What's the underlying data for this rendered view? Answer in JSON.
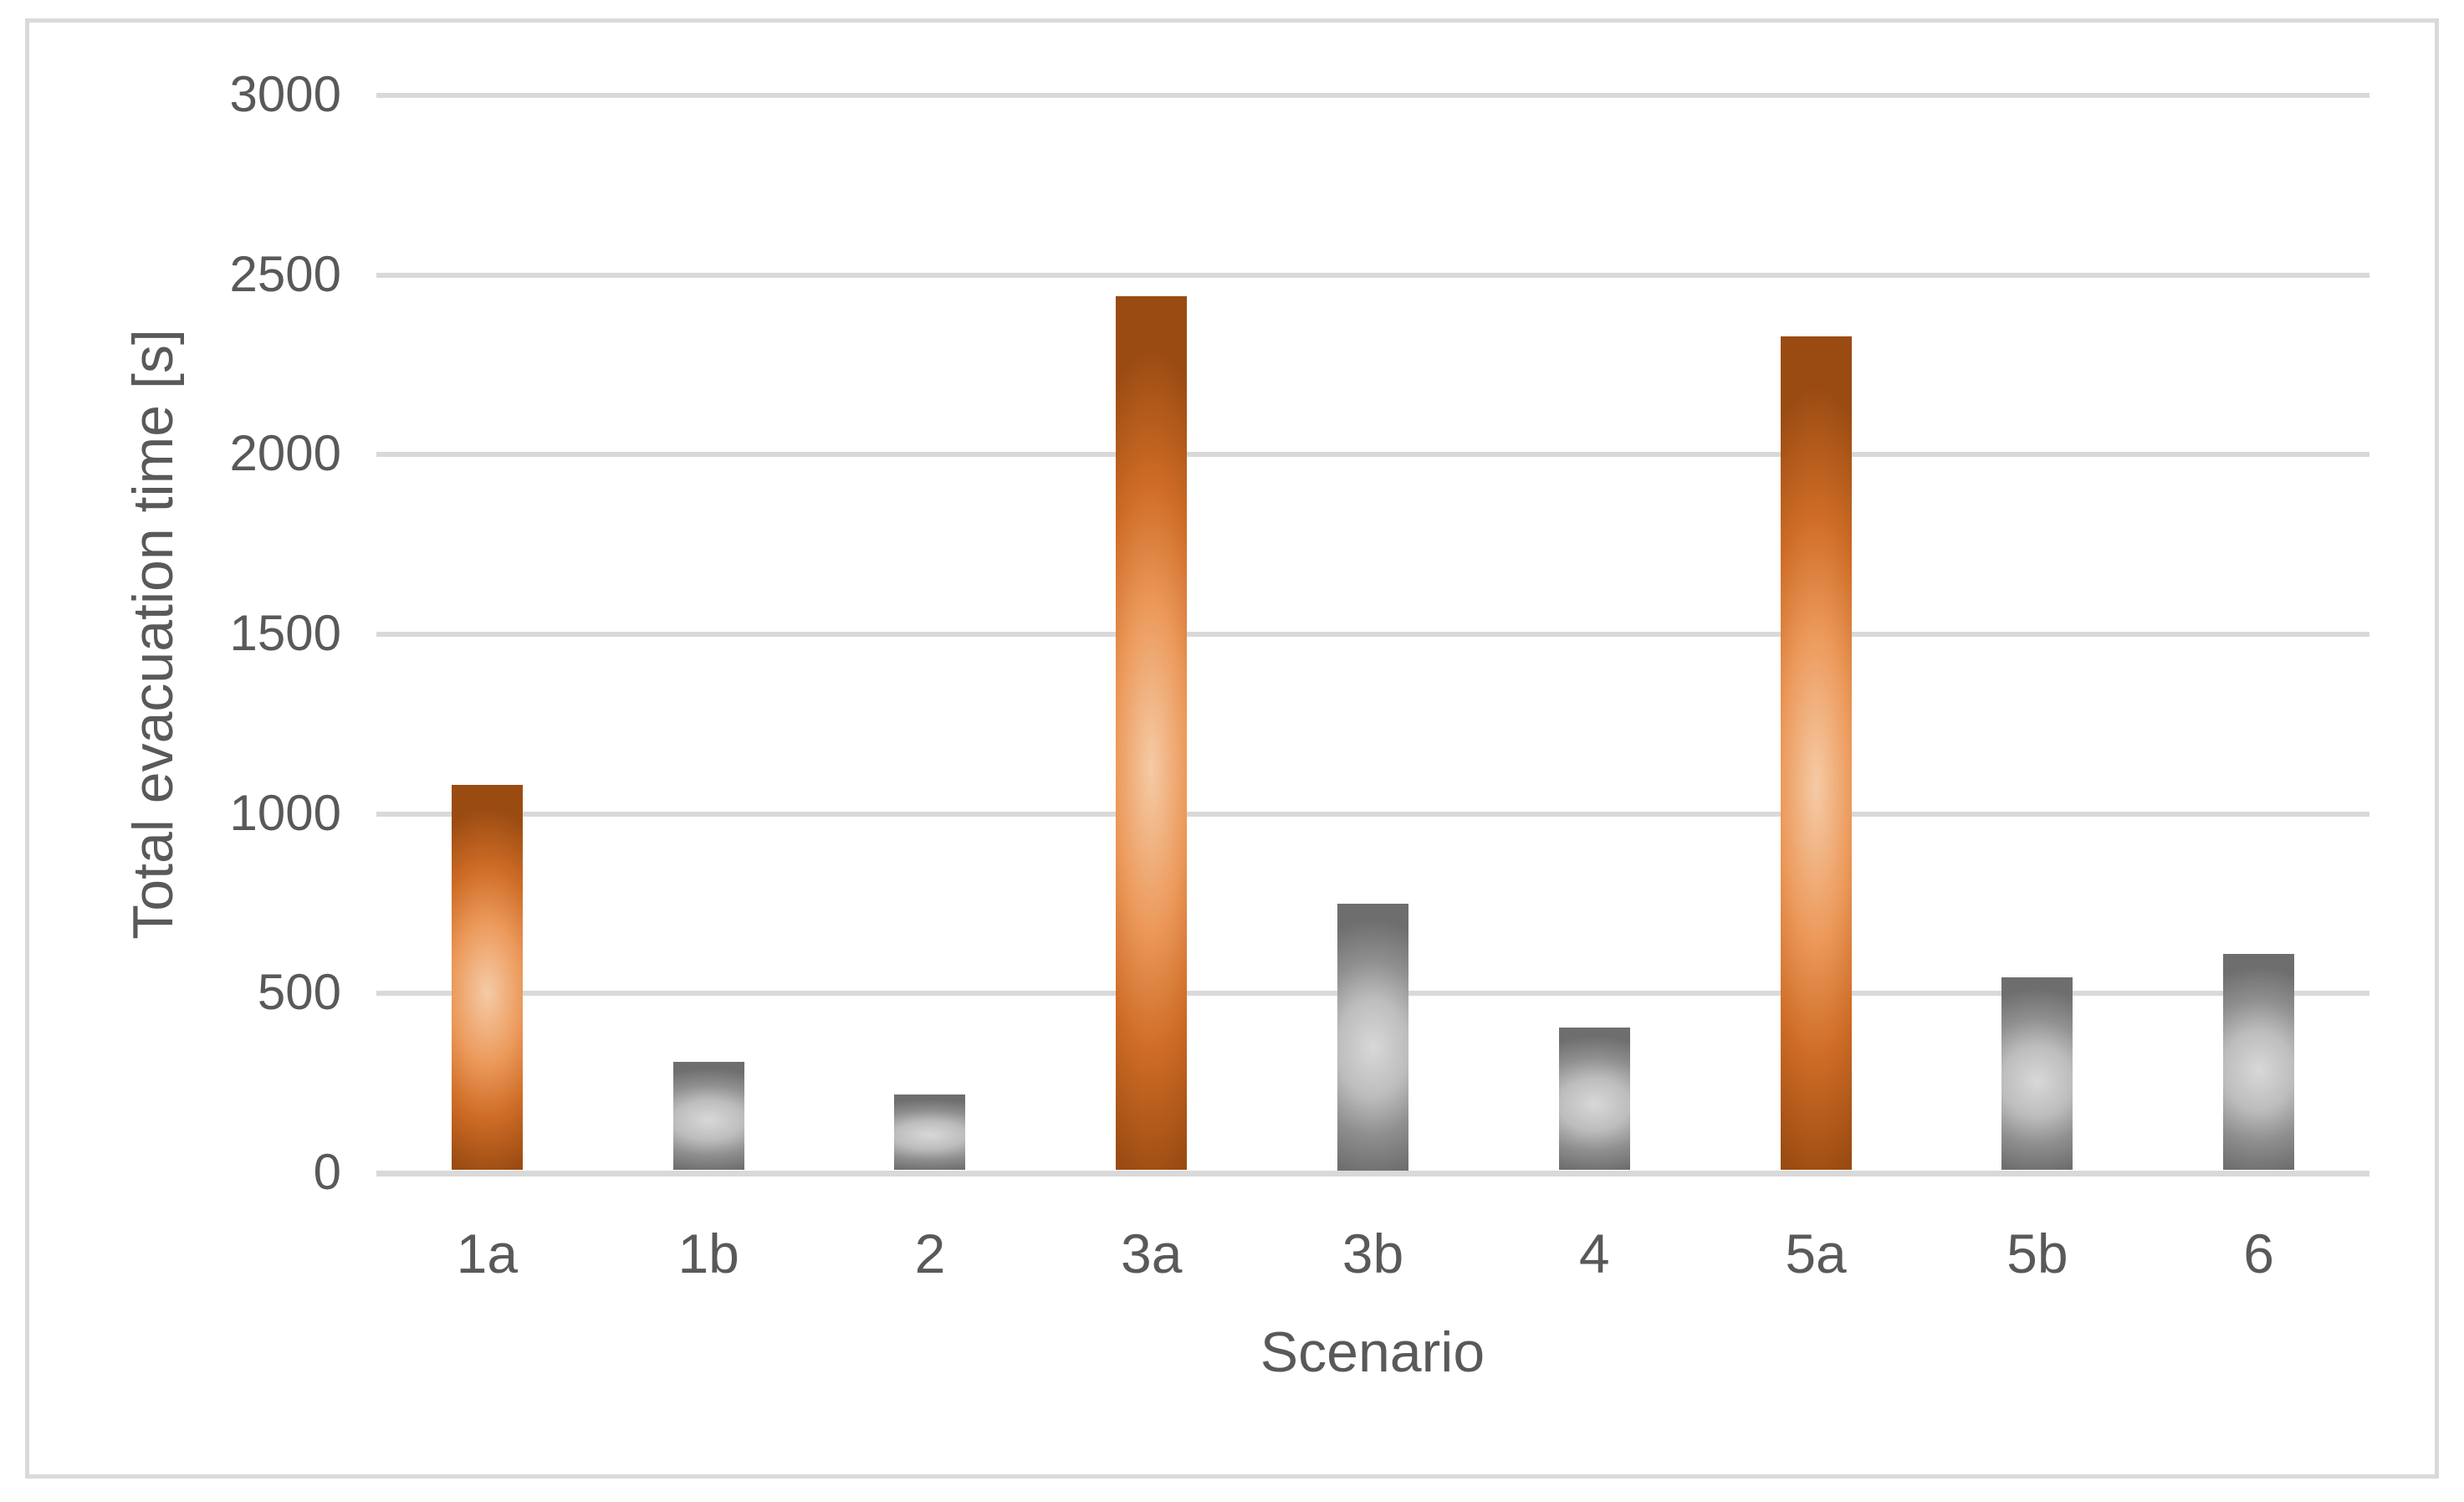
{
  "chart_data": {
    "type": "bar",
    "title": "",
    "categories": [
      "1a",
      "1b",
      "2",
      "3a",
      "3b",
      "4",
      "5a",
      "5b",
      "6"
    ],
    "values": [
      1080,
      310,
      220,
      2440,
      750,
      405,
      2330,
      545,
      610
    ],
    "bar_styles": [
      "accent",
      "neutral",
      "neutral",
      "accent",
      "neutral",
      "neutral",
      "accent",
      "neutral",
      "neutral"
    ],
    "xlabel": "Scenario",
    "ylabel": "Total evacuation time [s]",
    "ylim": [
      0,
      3000
    ],
    "ytick_step": 500,
    "yticks": [
      0,
      500,
      1000,
      1500,
      2000,
      2500,
      3000
    ],
    "grid": true,
    "legend": "none",
    "colors": {
      "accent_dark": "#9A4B12",
      "accent_mid": "#CE6C26",
      "accent_light": "#EC9A5C",
      "accent_glow": "#F5CBA6",
      "neutral_dark": "#6E6E6E",
      "neutral_mid": "#8F8F8F",
      "neutral_light": "#BDBDBD",
      "neutral_glow": "#D8D8D8",
      "gridline": "#D9D9D9",
      "axis_text": "#595959",
      "border": "#D9D9D9",
      "background": "#FFFFFF"
    }
  }
}
